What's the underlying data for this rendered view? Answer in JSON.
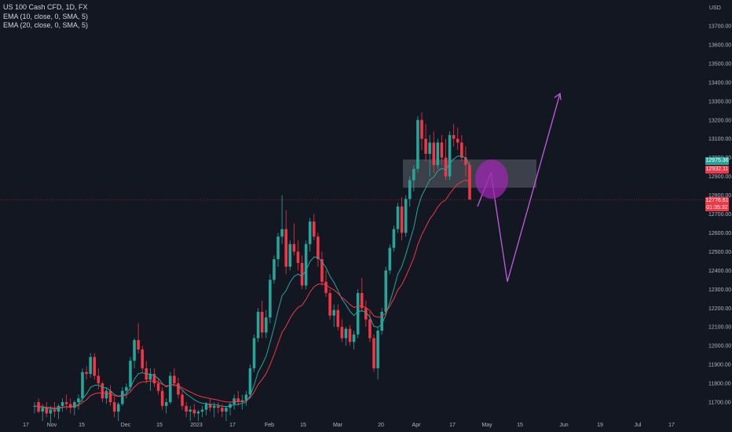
{
  "legend": {
    "symbol": "US 100 Cash CFD, 1D, FX",
    "ema10": "EMA (10, close, 0, SMA, 5)",
    "ema20": "EMA (20, close, 0, SMA, 5)"
  },
  "axis": {
    "currency": "USD",
    "y_ticks": [
      "13700.00",
      "13600.00",
      "13500.00",
      "13400.00",
      "13300.00",
      "13200.00",
      "13100.00",
      "13000.00",
      "12900.00",
      "12800.00",
      "12700.00",
      "12600.00",
      "12500.00",
      "12400.00",
      "12300.00",
      "12200.00",
      "12100.00",
      "12000.00",
      "11900.00",
      "11800.00",
      "11700.00"
    ],
    "x_ticks": [
      "17",
      "Nov",
      "15",
      "Dec",
      "15",
      "2023",
      "17",
      "Feb",
      "15",
      "Mar",
      "20",
      "Apr",
      "17",
      "May",
      "15",
      "Jun",
      "19",
      "Jul",
      "17"
    ]
  },
  "price_labels": {
    "ema10_value": "12975.36",
    "ema20_value": "12932.11",
    "last_price": "12776.61",
    "countdown": "01:35:32"
  },
  "colors": {
    "background": "#131722",
    "up": "#26a69a",
    "down": "#f23645",
    "ema10": "#26a69a",
    "ema20": "#f23645",
    "projection": "#c25ee0",
    "zone": "#d1d4dc",
    "grid": "#1e222d"
  },
  "chart_data": {
    "type": "candlestick",
    "title": "US 100 Cash CFD, 1D, FX",
    "xlabel": "",
    "ylabel": "USD",
    "ylim": [
      11660,
      13780
    ],
    "x_ticks": [
      "17",
      "Nov",
      "15",
      "Dec",
      "15",
      "2023",
      "17",
      "Feb",
      "15",
      "Mar",
      "20",
      "Apr",
      "17",
      "May",
      "15",
      "Jun",
      "19",
      "Jul",
      "17"
    ],
    "grid": false,
    "candles_ohlc": [
      [
        11680,
        11700,
        11640,
        11680
      ],
      [
        11700,
        11720,
        11640,
        11650
      ],
      [
        11650,
        11690,
        11600,
        11670
      ],
      [
        11670,
        11700,
        11620,
        11640
      ],
      [
        11640,
        11680,
        11590,
        11660
      ],
      [
        11660,
        11700,
        11620,
        11650
      ],
      [
        11650,
        11690,
        11610,
        11680
      ],
      [
        11680,
        11720,
        11650,
        11700
      ],
      [
        11700,
        11740,
        11660,
        11690
      ],
      [
        11690,
        11720,
        11640,
        11670
      ],
      [
        11670,
        11710,
        11630,
        11700
      ],
      [
        11700,
        11740,
        11660,
        11720
      ],
      [
        11720,
        11880,
        11700,
        11860
      ],
      [
        11860,
        11890,
        11820,
        11850
      ],
      [
        11850,
        11960,
        11830,
        11940
      ],
      [
        11940,
        11960,
        11820,
        11840
      ],
      [
        11840,
        11880,
        11770,
        11800
      ],
      [
        11800,
        11810,
        11700,
        11720
      ],
      [
        11720,
        11780,
        11690,
        11760
      ],
      [
        11760,
        11790,
        11680,
        11700
      ],
      [
        11700,
        11730,
        11620,
        11650
      ],
      [
        11650,
        11700,
        11600,
        11690
      ],
      [
        11690,
        11780,
        11680,
        11760
      ],
      [
        11760,
        11800,
        11720,
        11780
      ],
      [
        11780,
        11940,
        11760,
        11920
      ],
      [
        11920,
        12040,
        11880,
        12030
      ],
      [
        12030,
        12120,
        11960,
        11980
      ],
      [
        11980,
        12000,
        11860,
        11880
      ],
      [
        11880,
        11920,
        11800,
        11820
      ],
      [
        11820,
        11880,
        11760,
        11850
      ],
      [
        11850,
        11880,
        11780,
        11800
      ],
      [
        11800,
        11830,
        11740,
        11760
      ],
      [
        11760,
        11780,
        11660,
        11680
      ],
      [
        11680,
        11720,
        11640,
        11700
      ],
      [
        11700,
        11860,
        11690,
        11840
      ],
      [
        11840,
        11880,
        11780,
        11800
      ],
      [
        11800,
        11830,
        11720,
        11740
      ],
      [
        11740,
        11760,
        11660,
        11680
      ],
      [
        11680,
        11700,
        11620,
        11650
      ],
      [
        11650,
        11680,
        11600,
        11660
      ],
      [
        11660,
        11690,
        11620,
        11640
      ],
      [
        11640,
        11660,
        11600,
        11650
      ],
      [
        11650,
        11680,
        11620,
        11660
      ],
      [
        11660,
        11700,
        11630,
        11690
      ],
      [
        11690,
        11720,
        11650,
        11670
      ],
      [
        11670,
        11700,
        11620,
        11680
      ],
      [
        11680,
        11700,
        11640,
        11670
      ],
      [
        11670,
        11690,
        11620,
        11650
      ],
      [
        11650,
        11680,
        11600,
        11670
      ],
      [
        11670,
        11700,
        11630,
        11690
      ],
      [
        11690,
        11740,
        11660,
        11720
      ],
      [
        11720,
        11760,
        11680,
        11700
      ],
      [
        11700,
        11740,
        11660,
        11710
      ],
      [
        11710,
        11760,
        11680,
        11740
      ],
      [
        11740,
        11900,
        11720,
        11880
      ],
      [
        11880,
        12060,
        11860,
        12040
      ],
      [
        12040,
        12200,
        12020,
        12180
      ],
      [
        12180,
        12240,
        12040,
        12070
      ],
      [
        12070,
        12190,
        12040,
        12150
      ],
      [
        12150,
        12380,
        12120,
        12350
      ],
      [
        12350,
        12480,
        12330,
        12460
      ],
      [
        12460,
        12600,
        12420,
        12580
      ],
      [
        12580,
        12800,
        12540,
        12620
      ],
      [
        12620,
        12720,
        12380,
        12420
      ],
      [
        12420,
        12560,
        12400,
        12540
      ],
      [
        12540,
        12650,
        12480,
        12500
      ],
      [
        12500,
        12560,
        12400,
        12440
      ],
      [
        12440,
        12480,
        12300,
        12320
      ],
      [
        12320,
        12560,
        12300,
        12540
      ],
      [
        12540,
        12680,
        12500,
        12660
      ],
      [
        12660,
        12700,
        12560,
        12580
      ],
      [
        12580,
        12600,
        12420,
        12460
      ],
      [
        12460,
        12500,
        12320,
        12340
      ],
      [
        12340,
        12400,
        12260,
        12280
      ],
      [
        12280,
        12300,
        12140,
        12160
      ],
      [
        12160,
        12220,
        12100,
        12190
      ],
      [
        12190,
        12220,
        12080,
        12100
      ],
      [
        12100,
        12140,
        12020,
        12040
      ],
      [
        12040,
        12100,
        12000,
        12090
      ],
      [
        12090,
        12110,
        12000,
        12020
      ],
      [
        12020,
        12080,
        11980,
        12060
      ],
      [
        12060,
        12300,
        12040,
        12280
      ],
      [
        12280,
        12360,
        12180,
        12200
      ],
      [
        12200,
        12240,
        12100,
        12140
      ],
      [
        12140,
        12180,
        12020,
        12040
      ],
      [
        12040,
        12060,
        11860,
        11880
      ],
      [
        11880,
        12100,
        11820,
        12080
      ],
      [
        12080,
        12200,
        12060,
        12180
      ],
      [
        12180,
        12420,
        12160,
        12400
      ],
      [
        12400,
        12540,
        12380,
        12520
      ],
      [
        12520,
        12640,
        12500,
        12620
      ],
      [
        12620,
        12760,
        12600,
        12740
      ],
      [
        12740,
        12790,
        12560,
        12600
      ],
      [
        12600,
        12800,
        12580,
        12780
      ],
      [
        12780,
        12900,
        12740,
        12880
      ],
      [
        12880,
        12960,
        12820,
        12940
      ],
      [
        12940,
        13220,
        12920,
        13200
      ],
      [
        13200,
        13240,
        13040,
        13100
      ],
      [
        13100,
        13180,
        12980,
        13020
      ],
      [
        13020,
        13120,
        12900,
        13080
      ],
      [
        13080,
        13140,
        12920,
        12960
      ],
      [
        12960,
        13100,
        12940,
        13080
      ],
      [
        13080,
        13120,
        12960,
        13000
      ],
      [
        13000,
        13100,
        12880,
        12900
      ],
      [
        12900,
        13140,
        12880,
        13120
      ],
      [
        13120,
        13180,
        13060,
        13100
      ],
      [
        13100,
        13160,
        13040,
        13080
      ],
      [
        13080,
        13120,
        12980,
        13000
      ],
      [
        13000,
        13060,
        12900,
        12960
      ],
      [
        12960,
        12980,
        12780,
        12776.61
      ]
    ],
    "ema_series": [
      {
        "name": "EMA (10, close, 0, SMA, 5)",
        "last": 12975.36
      },
      {
        "name": "EMA (20, close, 0, SMA, 5)",
        "last": 12932.11
      }
    ],
    "annotations": {
      "resistance_zone": {
        "from": 12840,
        "to": 12990
      },
      "projection_path": [
        12740,
        12920,
        12340,
        13340
      ]
    }
  }
}
